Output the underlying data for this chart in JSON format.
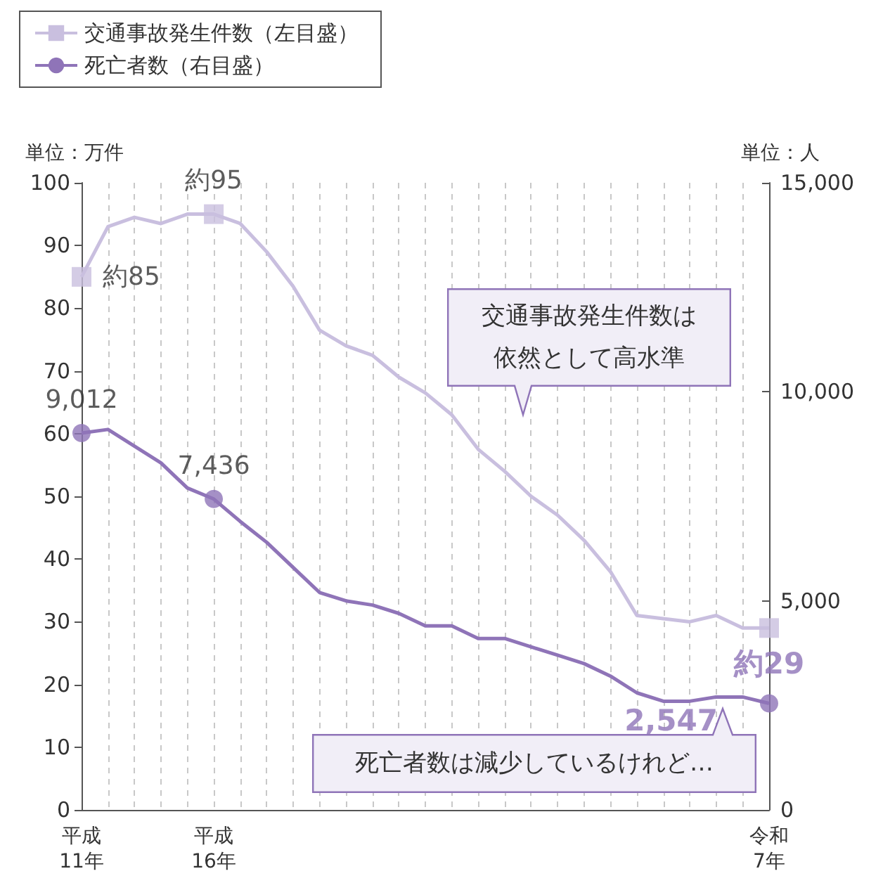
{
  "chart_data": {
    "type": "line",
    "categories": [
      "平成\n11年",
      null,
      null,
      null,
      null,
      "平成\n16年",
      null,
      null,
      null,
      null,
      null,
      null,
      null,
      null,
      null,
      null,
      null,
      null,
      null,
      null,
      null,
      null,
      null,
      null,
      null,
      null,
      "令和\n7年"
    ],
    "series": [
      {
        "name": "交通事故発生件数（左目盛）",
        "color": "#c9bfdf",
        "values": [
          85,
          93,
          94.5,
          93.5,
          95,
          95,
          93.5,
          89,
          83.5,
          76.5,
          74,
          72.5,
          69,
          66.5,
          63,
          57.5,
          54,
          50,
          47,
          43,
          38,
          31,
          30.5,
          30,
          31,
          29,
          29
        ]
      },
      {
        "name": "死亡者数（右目盛）",
        "color": "#8f74b8",
        "axis": "y2",
        "values": [
          9012,
          9100,
          8700,
          8300,
          7700,
          7436,
          6900,
          6400,
          5800,
          5200,
          5000,
          4900,
          4700,
          4400,
          4400,
          4100,
          4100,
          3900,
          3700,
          3500,
          3200,
          2800,
          2600,
          2600,
          2700,
          2700,
          2547
        ]
      },
      {
        "type": "scatter",
        "color": "#c9bfdf",
        "marker": "square",
        "x": [
          "平成\n11年",
          "平成\n16年",
          "令和\n7年"
        ],
        "values": [
          85,
          95,
          29
        ],
        "value_labels": [
          "約85",
          "約95",
          "約29"
        ]
      },
      {
        "type": "scatter",
        "color": "#8f74b8",
        "marker": "circle",
        "axis": "y2",
        "x": [
          "平成\n11年",
          "平成\n16年",
          "令和\n7年"
        ],
        "values": [
          9012,
          7436,
          2547
        ],
        "value_labels": [
          "9,012",
          "7,436",
          "2,547"
        ]
      }
    ],
    "ylabel": "単位：万件",
    "y2label": "単位：人",
    "ylim": [
      0,
      100
    ],
    "yticks": [
      0,
      10,
      20,
      30,
      40,
      50,
      60,
      70,
      80,
      90,
      100
    ],
    "y2lim": [
      0,
      15000
    ],
    "y2ticks": [
      0,
      {
        "value": 5000,
        "label": "5,000"
      },
      {
        "value": 10000,
        "label": "10,000"
      },
      {
        "value": 15000,
        "label": "15,000"
      }
    ],
    "grid": "x",
    "legend": "top left",
    "annotations": [
      "交通事故発生件数は依然として高水準",
      "死亡者数は減少しているけれど…"
    ]
  }
}
